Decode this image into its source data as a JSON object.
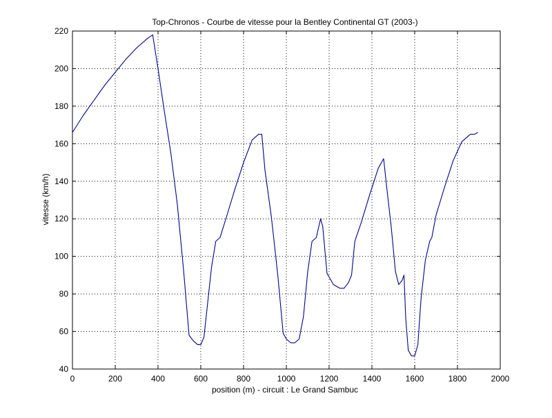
{
  "chart_data": {
    "type": "line",
    "title": "Top-Chronos - Courbe de vitesse pour la Bentley Continental GT (2003-)",
    "xlabel": "position (m) - circuit : Le Grand Sambuc",
    "ylabel": "vitesse (km/h)",
    "xlim": [
      0,
      2000
    ],
    "ylim": [
      40,
      220
    ],
    "xticks": [
      0,
      200,
      400,
      600,
      800,
      1000,
      1200,
      1400,
      1600,
      1800,
      2000
    ],
    "yticks": [
      40,
      60,
      80,
      100,
      120,
      140,
      160,
      180,
      200,
      220
    ],
    "grid": true,
    "line_color": "#00008b",
    "series": [
      {
        "x": [
          0,
          50,
          100,
          150,
          200,
          250,
          300,
          350,
          375,
          400,
          430,
          460,
          490,
          520,
          545,
          565,
          585,
          600,
          615,
          630,
          650,
          670,
          690,
          720,
          760,
          800,
          840,
          870,
          885,
          900,
          930,
          960,
          985,
          1000,
          1020,
          1040,
          1060,
          1080,
          1100,
          1120,
          1140,
          1160,
          1170,
          1190,
          1220,
          1250,
          1270,
          1290,
          1305,
          1320,
          1350,
          1390,
          1430,
          1455,
          1470,
          1490,
          1510,
          1525,
          1540,
          1550,
          1558,
          1570,
          1585,
          1600,
          1615,
          1630,
          1650,
          1670,
          1680,
          1700,
          1740,
          1780,
          1820,
          1860,
          1880,
          1895
        ],
        "y": [
          166,
          175,
          183,
          191,
          198,
          205,
          211,
          216,
          218,
          200,
          177,
          155,
          128,
          92,
          58,
          55,
          53,
          53,
          57,
          73,
          94,
          108,
          110,
          121,
          136,
          150,
          162,
          165,
          165,
          146,
          121,
          90,
          59,
          56,
          54,
          54,
          56,
          68,
          92,
          108,
          110,
          120,
          116,
          91,
          85,
          83,
          83,
          86,
          90,
          108,
          118,
          133,
          147,
          152,
          136,
          116,
          92,
          85,
          87,
          90,
          67,
          50,
          47,
          47,
          53,
          78,
          98,
          108,
          110,
          122,
          137,
          151,
          161,
          165,
          165,
          166
        ]
      }
    ]
  }
}
